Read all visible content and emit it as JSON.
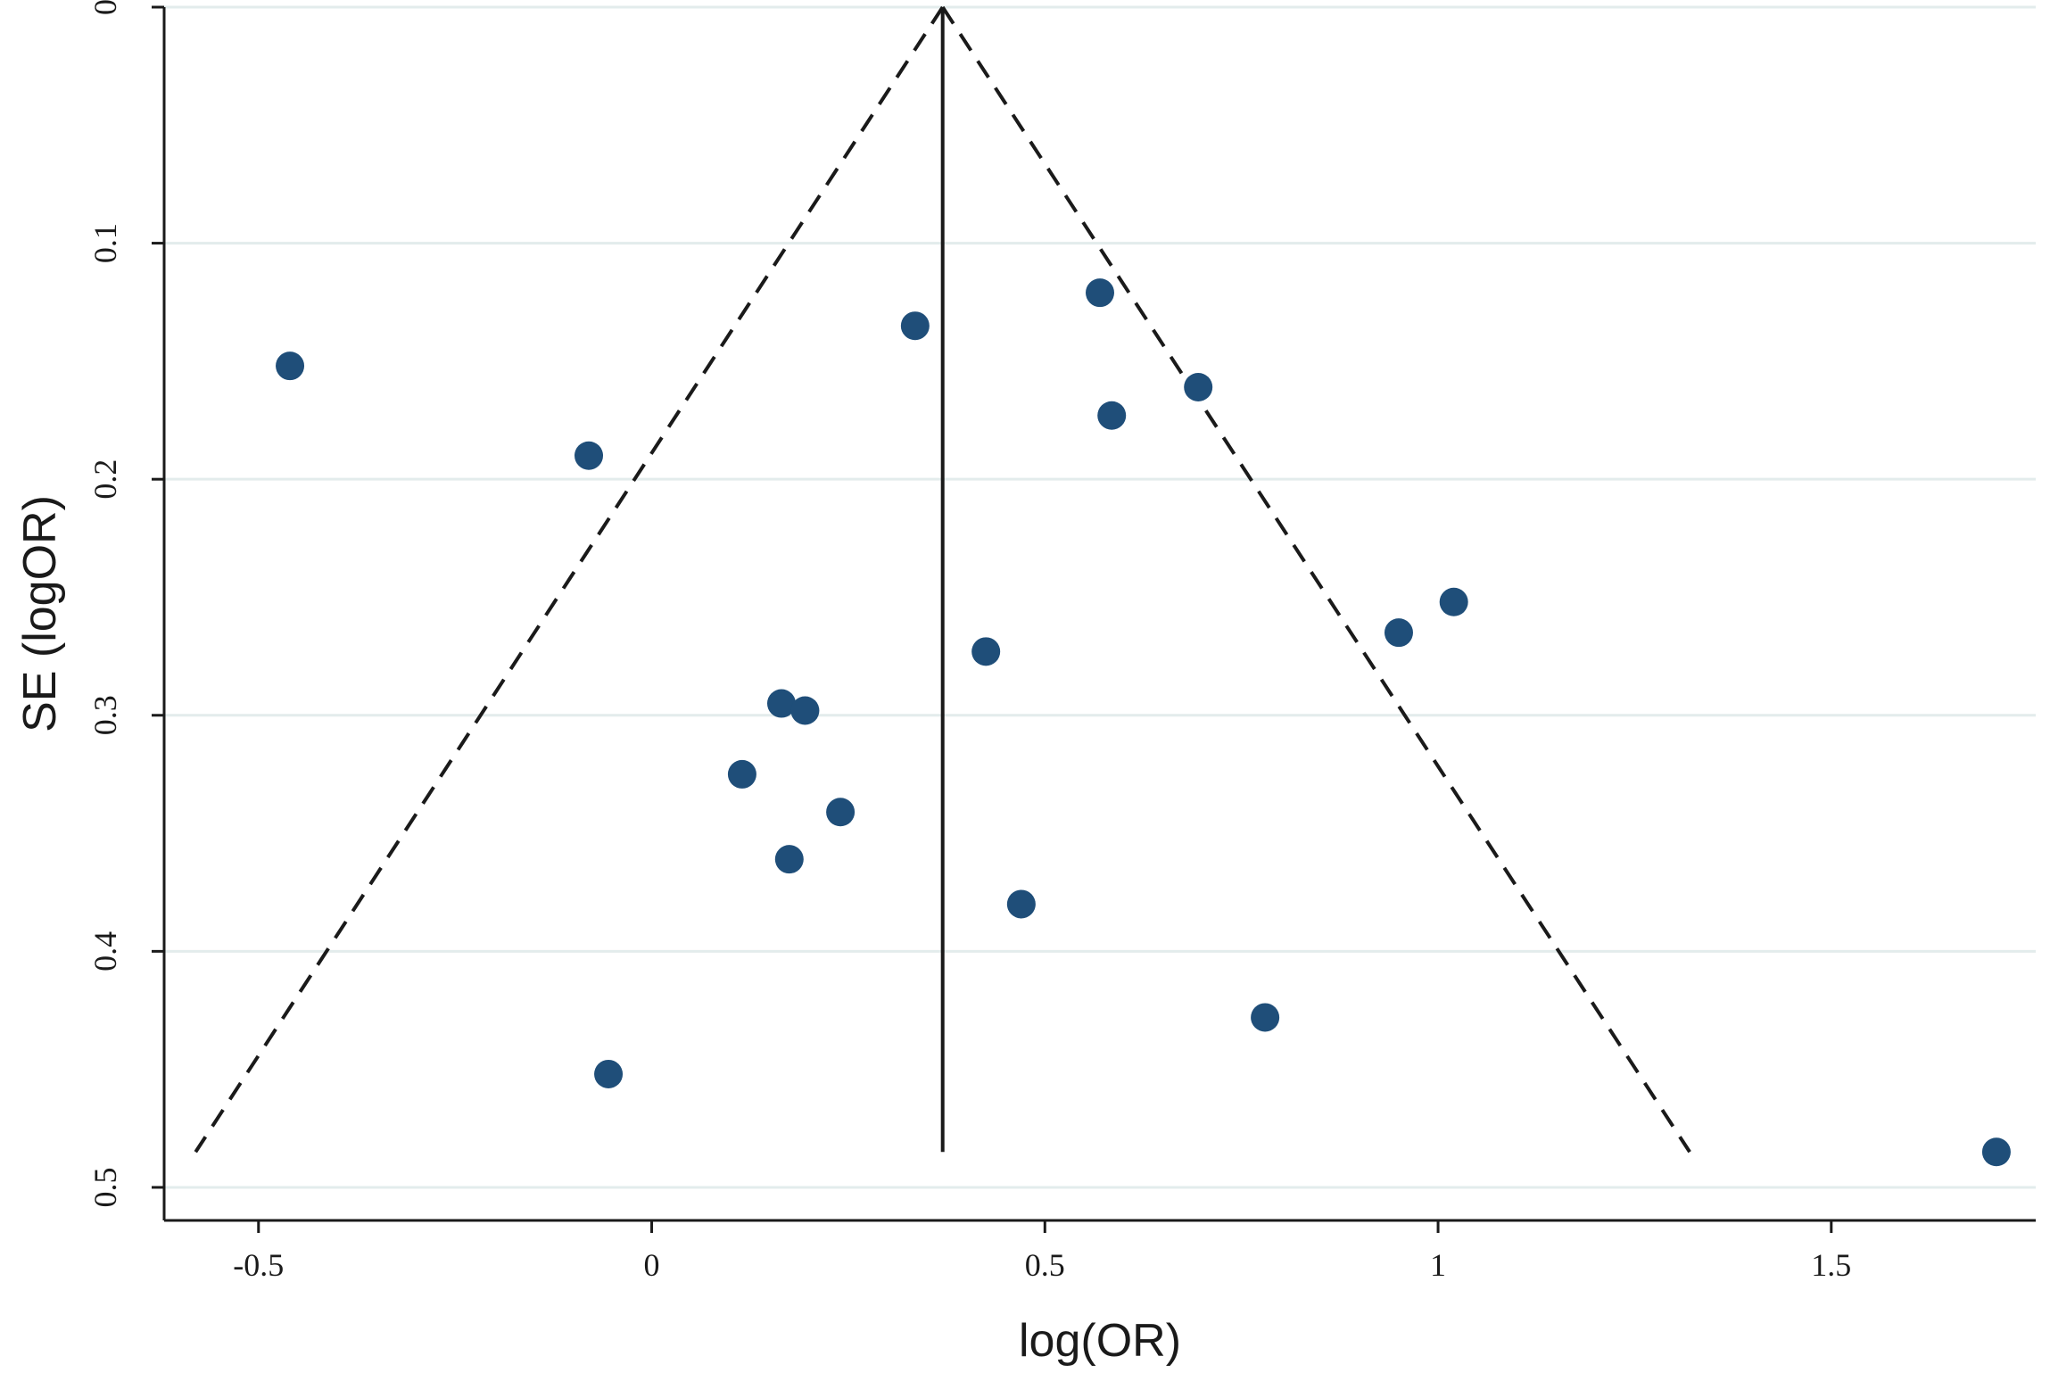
{
  "chart_data": {
    "type": "scatter",
    "xlabel": "log(OR)",
    "ylabel": "SE (logOR)",
    "xlim": [
      -0.62,
      1.76
    ],
    "ylim": [
      0.0,
      0.514
    ],
    "y_inverted": true,
    "grid": "horizontal",
    "x_ticks": [
      -0.5,
      0,
      0.5,
      1,
      1.5
    ],
    "x_tick_labels": [
      "-0.5",
      "0",
      "0.5",
      "1",
      "1.5"
    ],
    "y_ticks": [
      0,
      0.1,
      0.2,
      0.3,
      0.4,
      0.5
    ],
    "y_tick_labels": [
      "0",
      "0.1",
      "0.2",
      "0.3",
      "0.4",
      "0.5"
    ],
    "pooled_estimate": 0.37,
    "pseudo_ci_lines": {
      "apex": [
        0.37,
        0.0
      ],
      "left_end": [
        -0.58,
        0.485
      ],
      "right_end": [
        1.32,
        0.485
      ]
    },
    "point_color": "#1f4e79",
    "points": [
      {
        "x": -0.46,
        "y": 0.152
      },
      {
        "x": -0.08,
        "y": 0.19
      },
      {
        "x": 0.335,
        "y": 0.135
      },
      {
        "x": 0.57,
        "y": 0.121
      },
      {
        "x": 0.585,
        "y": 0.173
      },
      {
        "x": 0.695,
        "y": 0.161
      },
      {
        "x": 0.425,
        "y": 0.273
      },
      {
        "x": 0.95,
        "y": 0.265
      },
      {
        "x": 1.02,
        "y": 0.252
      },
      {
        "x": 0.165,
        "y": 0.295
      },
      {
        "x": 0.195,
        "y": 0.298
      },
      {
        "x": 0.115,
        "y": 0.325
      },
      {
        "x": 0.24,
        "y": 0.341
      },
      {
        "x": 0.175,
        "y": 0.361
      },
      {
        "x": 0.47,
        "y": 0.38
      },
      {
        "x": 0.78,
        "y": 0.428
      },
      {
        "x": -0.055,
        "y": 0.452
      },
      {
        "x": 1.71,
        "y": 0.485
      }
    ]
  }
}
